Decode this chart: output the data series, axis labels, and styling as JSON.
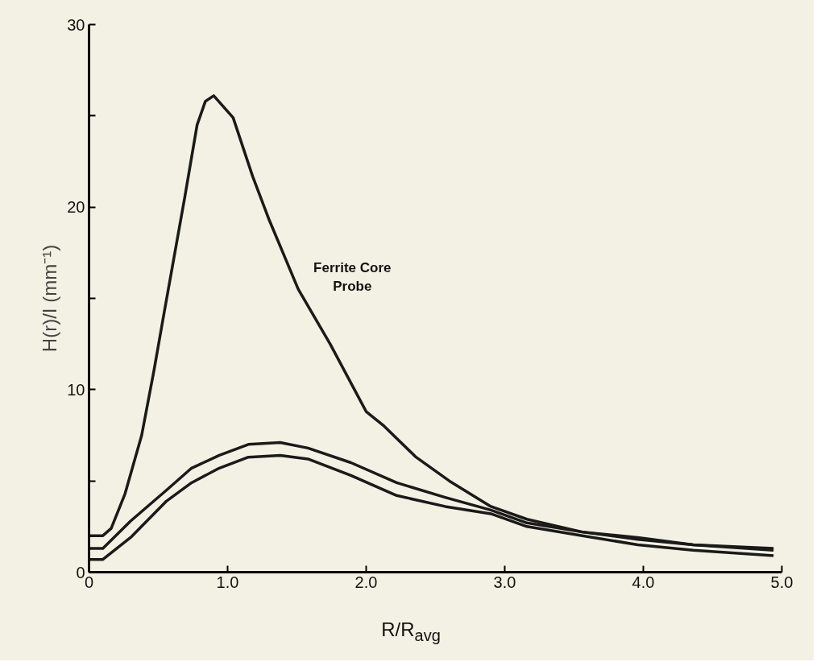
{
  "chart_data": {
    "type": "line",
    "xlabel": "R/R$_{avg}$",
    "ylabel": "H(r)/I (mm⁻¹)",
    "xlim": [
      0,
      5
    ],
    "ylim": [
      0,
      30
    ],
    "xticks": [
      0,
      {
        "value": 1,
        "label": "1.0"
      },
      {
        "value": 2,
        "label": "2.0"
      },
      {
        "value": 3,
        "label": "3.0"
      },
      {
        "value": 4,
        "label": "4.0"
      },
      {
        "value": 5,
        "label": "5.0"
      }
    ],
    "yticks": [
      0,
      {
        "value": 5,
        "label": null
      },
      10,
      {
        "value": 15,
        "label": null
      },
      20,
      {
        "value": 25,
        "label": null
      },
      30
    ],
    "grid": false,
    "marker": "none",
    "line_style": "solid",
    "annotations": [
      "Ferrite Core Probe"
    ],
    "series": [
      {
        "color": "#1a1a1a",
        "x": [
          0,
          0.1,
          0.16,
          0.26,
          0.38,
          0.47,
          0.53,
          0.61,
          0.69,
          0.78,
          0.84,
          0.9,
          1.04,
          1.18,
          1.3,
          1.51,
          1.74,
          2.0,
          2.13,
          2.36,
          2.6,
          2.9,
          3.16,
          3.56,
          3.96,
          4.36,
          4.94
        ],
        "values": [
          2.0,
          2.0,
          2.4,
          4.3,
          7.5,
          11.1,
          13.7,
          17.1,
          20.5,
          24.5,
          25.8,
          26.1,
          24.9,
          21.7,
          19.3,
          15.5,
          12.5,
          8.8,
          8.0,
          6.3,
          5.0,
          3.6,
          2.9,
          2.2,
          1.8,
          1.5,
          1.3
        ]
      },
      {
        "color": "#1a1a1a",
        "x": [
          0,
          0.1,
          0.3,
          0.56,
          0.74,
          0.94,
          1.15,
          1.38,
          1.58,
          1.89,
          2.22,
          2.57,
          2.9,
          3.16,
          3.56,
          3.96,
          4.36,
          4.94
        ],
        "values": [
          1.3,
          1.3,
          2.8,
          4.5,
          5.7,
          6.4,
          7.0,
          7.1,
          6.8,
          6.0,
          4.9,
          4.1,
          3.4,
          2.7,
          2.2,
          1.9,
          1.5,
          1.2
        ]
      },
      {
        "color": "#1a1a1a",
        "x": [
          0,
          0.1,
          0.3,
          0.56,
          0.74,
          0.94,
          1.15,
          1.38,
          1.58,
          1.89,
          2.22,
          2.57,
          2.9,
          3.16,
          3.56,
          3.96,
          4.36,
          4.94
        ],
        "values": [
          0.7,
          0.7,
          1.9,
          3.9,
          4.9,
          5.7,
          6.3,
          6.4,
          6.2,
          5.3,
          4.2,
          3.6,
          3.2,
          2.5,
          2.0,
          1.5,
          1.2,
          0.9
        ]
      }
    ]
  }
}
